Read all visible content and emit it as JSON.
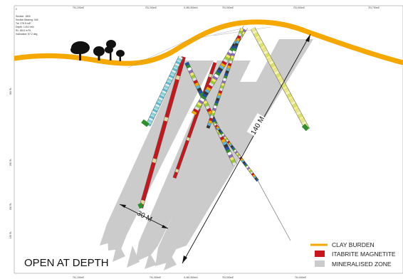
{
  "frame": {
    "top_ticks": [
      "751,200mE",
      "751,300mE",
      "6,460,350mN",
      "751,500mE",
      "751,600mE",
      "751,700mE"
    ],
    "bottom_ticks": [
      "751,200mE",
      "751,300mE",
      "6,460,350mN",
      "751,500mE",
      "751,600mE"
    ],
    "left_ticks": [
      "300 RL",
      "250 RL",
      "200 RL",
      "150 RL"
    ],
    "corner_mark": "0"
  },
  "section_info": [
    "Section: 1800",
    "Section Bearing: 045",
    "Tol: 278.5 m/E",
    "Depth: 140.0 mN",
    "RL: 88.8 m RL",
    "Inclination: 57.2 deg"
  ],
  "dimensions": {
    "depth_label": "140 M",
    "width_label": "30 M"
  },
  "annotation": "OPEN AT DEPTH",
  "legend": {
    "items": [
      {
        "label": "CLAY BURDEN",
        "color": "#f5a800",
        "kind": "line"
      },
      {
        "label": "ITABRITE MAGNETITE",
        "color": "#c8161d",
        "kind": "box"
      },
      {
        "label": "MINERALISED ZONE",
        "color": "#cccccc",
        "kind": "box"
      }
    ]
  },
  "colors": {
    "clay": "#f5a800",
    "itabrite": "#c8161d",
    "mineralised": "#cbcbcb",
    "tree": "#111111"
  },
  "icons": [
    "tree-icon"
  ]
}
